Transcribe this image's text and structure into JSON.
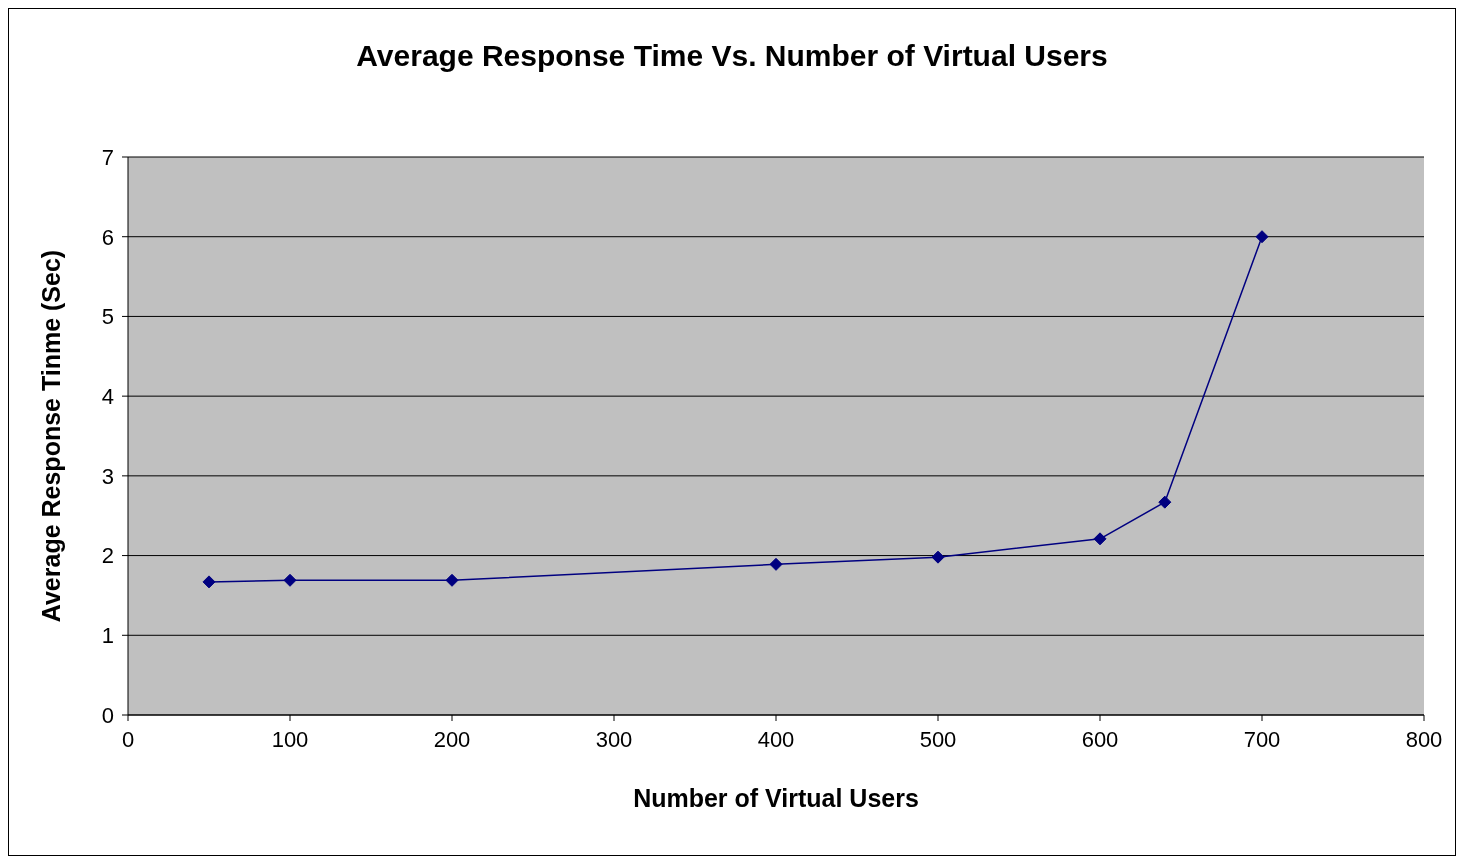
{
  "chart_data": {
    "type": "line",
    "title": "Average Response Time Vs. Number of Virtual Users",
    "xlabel": "Number of Virtual Users",
    "ylabel": "Average Response Tinme (Sec)",
    "x": [
      50,
      100,
      200,
      400,
      500,
      600,
      640,
      700
    ],
    "series": [
      {
        "color": "#000080",
        "values": [
          1.67,
          1.69,
          1.69,
          1.89,
          1.98,
          2.21,
          2.67,
          6.0
        ]
      }
    ],
    "xlim": [
      0,
      800
    ],
    "xticks": [
      0,
      100,
      200,
      300,
      400,
      500,
      600,
      700,
      800
    ],
    "ylim": [
      0,
      7
    ],
    "yticks": [
      0,
      1,
      2,
      3,
      4,
      5,
      6,
      7
    ],
    "grid": "y",
    "marker": "diamond",
    "line_style": "solid"
  }
}
